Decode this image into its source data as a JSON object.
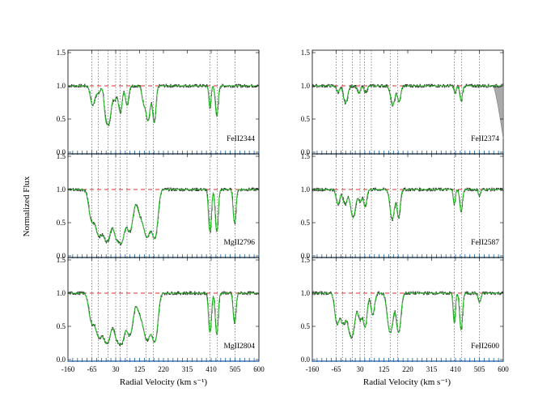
{
  "chart_data": {
    "type": "line",
    "ylabel": "Normalized Flux",
    "xlabel": "Radial Velocity (km s⁻¹)",
    "xlim": [
      -160,
      600
    ],
    "ylim": [
      0.0,
      1.5
    ],
    "x_ticks": [
      -160,
      -65,
      30,
      125,
      220,
      315,
      410,
      505,
      600
    ],
    "y_ticks": [
      0.0,
      0.5,
      1.0,
      1.5
    ],
    "component_velocities": [
      -65,
      -40,
      0,
      30,
      48,
      75,
      150,
      180,
      405,
      435,
      505
    ],
    "continuum_level": 1.0,
    "colors": {
      "data": "#333333",
      "model": "#22bb22",
      "continuum": "#dd3333",
      "components": "#444444",
      "ticks": "#1a5aa0",
      "blend": "#aaaaaa"
    },
    "panels": [
      {
        "ion": "FeII2344",
        "col": 0,
        "row": 0,
        "absorbers": [
          [
            -62,
            0.35,
            8
          ],
          [
            -40,
            0.12,
            8
          ],
          [
            -10,
            0.4,
            6
          ],
          [
            2,
            0.8,
            9
          ],
          [
            27,
            0.22,
            7
          ],
          [
            48,
            0.5,
            7
          ],
          [
            75,
            0.35,
            6
          ],
          [
            140,
            0.25,
            6
          ],
          [
            158,
            0.75,
            8
          ],
          [
            183,
            0.8,
            6
          ],
          [
            405,
            0.4,
            4
          ],
          [
            432,
            0.6,
            5
          ]
        ]
      },
      {
        "ion": "MgII2796",
        "col": 0,
        "row": 1,
        "absorbers": [
          [
            -66,
            0.6,
            10
          ],
          [
            -38,
            1.1,
            12
          ],
          [
            -5,
            1.5,
            14
          ],
          [
            35,
            1.3,
            12
          ],
          [
            55,
            1.2,
            10
          ],
          [
            85,
            1.0,
            12
          ],
          [
            128,
            0.45,
            12
          ],
          [
            155,
            1.2,
            12
          ],
          [
            185,
            1.3,
            10
          ],
          [
            405,
            1.0,
            5
          ],
          [
            432,
            1.0,
            5
          ],
          [
            503,
            0.7,
            5
          ]
        ]
      },
      {
        "ion": "FeII2374",
        "col": 1,
        "row": 0,
        "absorbers": [
          [
            -58,
            0.1,
            6
          ],
          [
            -28,
            0.3,
            8
          ],
          [
            25,
            0.12,
            6
          ],
          [
            52,
            0.1,
            6
          ],
          [
            160,
            0.35,
            8
          ],
          [
            185,
            0.28,
            6
          ],
          [
            408,
            0.12,
            4
          ],
          [
            432,
            0.25,
            5
          ]
        ],
        "blend": true
      },
      {
        "ion": "FeII2587",
        "col": 1,
        "row": 1,
        "absorbers": [
          [
            -58,
            0.25,
            7
          ],
          [
            -30,
            0.25,
            8
          ],
          [
            2,
            0.55,
            9
          ],
          [
            30,
            0.2,
            7
          ],
          [
            50,
            0.3,
            6
          ],
          [
            158,
            0.6,
            8
          ],
          [
            183,
            0.55,
            6
          ],
          [
            405,
            0.25,
            4
          ],
          [
            432,
            0.4,
            5
          ],
          [
            505,
            0.1,
            4
          ]
        ]
      },
      {
        "ion": "MgII2804",
        "col": 0,
        "row": 2,
        "absorbers": [
          [
            -66,
            0.55,
            10
          ],
          [
            -38,
            1.0,
            12
          ],
          [
            -5,
            1.4,
            14
          ],
          [
            35,
            1.1,
            12
          ],
          [
            55,
            1.1,
            10
          ],
          [
            85,
            1.0,
            12
          ],
          [
            128,
            0.35,
            12
          ],
          [
            155,
            1.2,
            12
          ],
          [
            185,
            1.3,
            10
          ],
          [
            405,
            0.9,
            5
          ],
          [
            432,
            0.95,
            5
          ],
          [
            503,
            0.6,
            5
          ]
        ]
      },
      {
        "ion": "FeII2600",
        "col": 1,
        "row": 2,
        "absorbers": [
          [
            -62,
            0.6,
            8
          ],
          [
            -38,
            0.6,
            10
          ],
          [
            -5,
            1.1,
            12
          ],
          [
            30,
            0.5,
            8
          ],
          [
            50,
            0.7,
            7
          ],
          [
            80,
            0.4,
            7
          ],
          [
            150,
            0.9,
            10
          ],
          [
            183,
            0.9,
            8
          ],
          [
            405,
            0.6,
            4
          ],
          [
            432,
            0.8,
            5
          ],
          [
            505,
            0.15,
            5
          ]
        ]
      }
    ]
  }
}
